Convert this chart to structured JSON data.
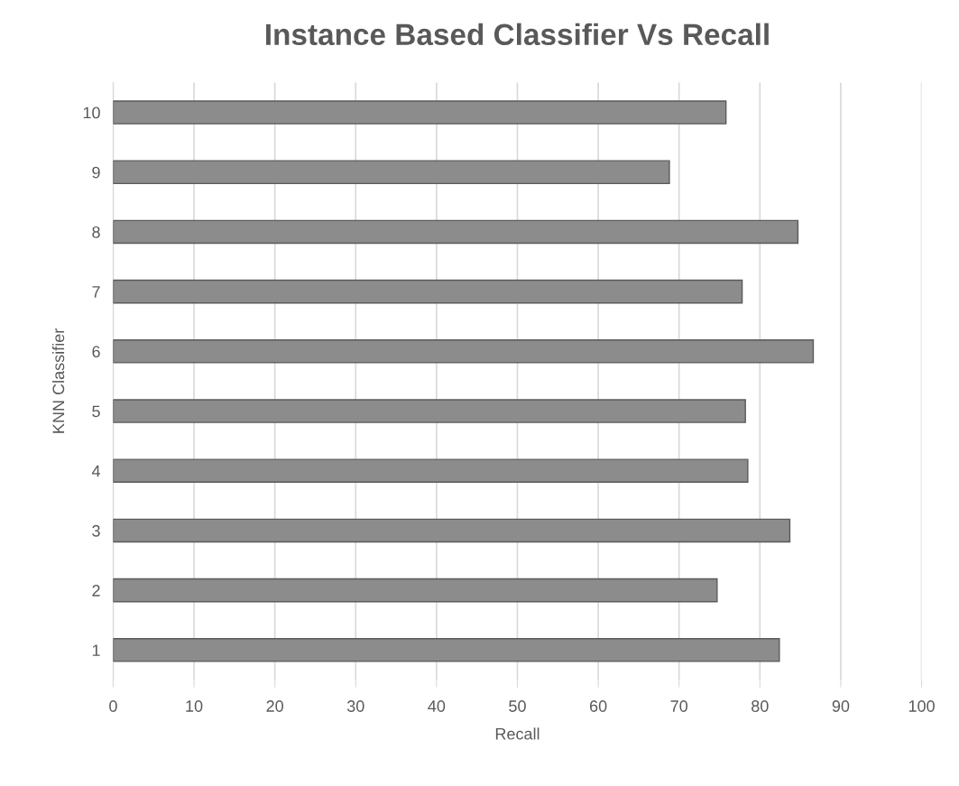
{
  "chart_data": {
    "type": "bar",
    "orientation": "horizontal",
    "title": "Instance Based Classifier Vs Recall",
    "xlabel": "Recall",
    "ylabel": "KNN Classifier",
    "categories": [
      "10",
      "9",
      "8",
      "7",
      "6",
      "5",
      "4",
      "3",
      "2",
      "1"
    ],
    "values": [
      75.8,
      68.8,
      84.7,
      77.8,
      86.6,
      78.2,
      78.5,
      83.7,
      74.7,
      82.4
    ],
    "color": "#8c8c8c",
    "xlim": [
      0,
      100
    ],
    "xticks": [
      0,
      10,
      20,
      30,
      40,
      50,
      60,
      70,
      80,
      90,
      100
    ],
    "grid": "x",
    "legend": false
  }
}
